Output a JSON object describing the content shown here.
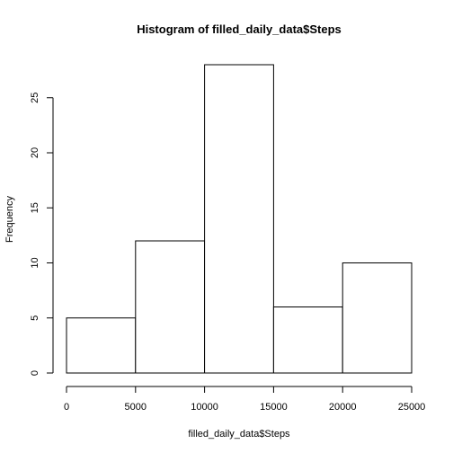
{
  "chart_data": {
    "type": "bar",
    "title": "Histogram of filled_daily_data$Steps",
    "xlabel": "filled_daily_data$Steps",
    "ylabel": "Frequency",
    "bin_edges": [
      0,
      5000,
      10000,
      15000,
      20000,
      25000
    ],
    "values": [
      5,
      12,
      28,
      6,
      10
    ],
    "xlim": [
      0,
      25000
    ],
    "ylim": [
      0,
      28
    ],
    "x_ticks": [
      0,
      5000,
      10000,
      15000,
      20000,
      25000
    ],
    "x_tick_labels": [
      "0",
      "5000",
      "10000",
      "15000",
      "20000",
      "25000"
    ],
    "y_ticks": [
      0,
      5,
      10,
      15,
      20,
      25
    ],
    "y_tick_labels": [
      "0",
      "5",
      "10",
      "15",
      "20",
      "25"
    ],
    "grid": false,
    "colors": {
      "bar_fill": "#ffffff",
      "bar_stroke": "#000000"
    }
  }
}
